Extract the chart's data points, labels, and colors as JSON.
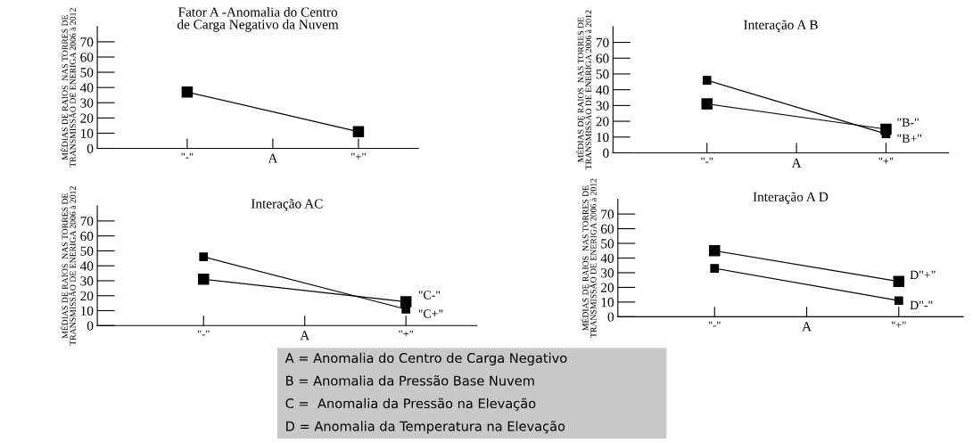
{
  "chart_data": [
    {
      "type": "line",
      "title": "Fator A -Anomalia do Centro\nde Carga Negativo da Nuvem",
      "ylabel": "MÉDIAS DE RAIOS  NAS TORRES DE\nTRANSMISSÃO DE ENERIGA 2006 à 2012",
      "xlabel": "A",
      "categories": [
        "\"-\"",
        null,
        "\"+\""
      ],
      "ylim": [
        0,
        80
      ],
      "yticks": [
        0,
        10,
        20,
        30,
        40,
        50,
        60,
        70
      ],
      "marker": "square",
      "grid": false,
      "series": [
        {
          "color": "#000000",
          "values": [
            37,
            null,
            11
          ]
        }
      ]
    },
    {
      "type": "line",
      "title": "Interação A B",
      "ylabel": "MÉDIAS DE RAIOS  NAS TORRES DE\nTRANSMISSÃO DE ENERIGA 2006 à 2012",
      "xlabel": "A",
      "categories": [
        "\"-\"",
        null,
        "\"+\""
      ],
      "ylim": [
        0,
        80
      ],
      "yticks": [
        0,
        10,
        20,
        30,
        40,
        50,
        60,
        70
      ],
      "marker": "square",
      "grid": false,
      "series": [
        {
          "name": "\"B-\"",
          "color": "#000000",
          "values": [
            31,
            null,
            15
          ]
        },
        {
          "name": "\"B+\"",
          "color": "#000000",
          "values": [
            46,
            null,
            12
          ]
        }
      ]
    },
    {
      "type": "line",
      "title": "Interação AC",
      "ylabel": "MÉDIAS DE RAIOS  NAS TORRES DE\nTRANSMISSÃO DE ENERIGA 2006 à 2012",
      "xlabel": "A",
      "categories": [
        "\"-\"",
        null,
        "\"+\""
      ],
      "ylim": [
        0,
        80
      ],
      "yticks": [
        0,
        10,
        20,
        30,
        40,
        50,
        60,
        70
      ],
      "marker": "square",
      "grid": false,
      "series": [
        {
          "name": "\"C-\"",
          "color": "#000000",
          "values": [
            31,
            null,
            16
          ]
        },
        {
          "name": "\"C+\"",
          "color": "#000000",
          "values": [
            46,
            null,
            11
          ]
        }
      ]
    },
    {
      "type": "line",
      "title": "Interação A D",
      "ylabel": "MÉDIAS DE RAIOS  NAS TORRES DE\nTRANSMISSÃO DE ENERIGA 2006 à 2012",
      "xlabel": "A",
      "categories": [
        "\"-\"",
        null,
        "\"+\""
      ],
      "ylim": [
        0,
        80
      ],
      "yticks": [
        0,
        10,
        20,
        30,
        40,
        50,
        60,
        70
      ],
      "marker": "square",
      "grid": false,
      "series": [
        {
          "name": "D\"+\"",
          "color": "#000000",
          "values": [
            45,
            null,
            24
          ]
        },
        {
          "name": "D\"-\"",
          "color": "#000000",
          "values": [
            33,
            null,
            11
          ]
        }
      ]
    },
    {
      "type": "other",
      "annotations": [
        "A = Anomalia do Centro de Carga Negativo",
        "B = Anomalia da Pressão Base Nuvem",
        "C =  Anomalia da Pressão na Elevação",
        "D = Anomalia da Temperatura na Elevação"
      ]
    }
  ]
}
